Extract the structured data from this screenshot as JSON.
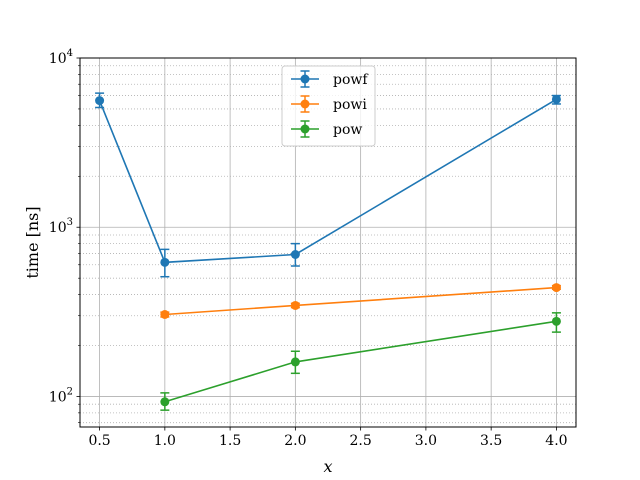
{
  "chart_data": {
    "type": "line",
    "title": "",
    "xlabel": "x",
    "ylabel": "time [ns]",
    "xlim": [
      0.35,
      4.15
    ],
    "ylim": [
      66,
      10000
    ],
    "yscale": "log",
    "grid": true,
    "legend_position": "top-center",
    "xticks": [
      0.5,
      1.0,
      1.5,
      2.0,
      2.5,
      3.0,
      3.5,
      4.0
    ],
    "xtick_labels": [
      "0.5",
      "1.0",
      "1.5",
      "2.0",
      "2.5",
      "3.0",
      "3.5",
      "4.0"
    ],
    "yticks": [
      {
        "value": 100,
        "base": "10",
        "exp": "2"
      },
      {
        "value": 1000,
        "base": "10",
        "exp": "3"
      },
      {
        "value": 10000,
        "base": "10",
        "exp": "4"
      }
    ],
    "series": [
      {
        "name": "powf",
        "color": "#1f77b4",
        "x": [
          0.5,
          1.0,
          2.0,
          4.0
        ],
        "y": [
          5600,
          620,
          690,
          5700
        ],
        "err_low": [
          5100,
          510,
          590,
          5350
        ],
        "err_high": [
          6200,
          740,
          800,
          6000
        ]
      },
      {
        "name": "powi",
        "color": "#ff7f0e",
        "x": [
          1.0,
          2.0,
          4.0
        ],
        "y": [
          305,
          345,
          440
        ],
        "err_low": [
          295,
          335,
          430
        ],
        "err_high": [
          315,
          355,
          452
        ]
      },
      {
        "name": "pow",
        "color": "#2ca02c",
        "x": [
          1.0,
          2.0,
          4.0
        ],
        "y": [
          93,
          160,
          278
        ],
        "err_low": [
          83,
          137,
          240
        ],
        "err_high": [
          105,
          185,
          312
        ]
      }
    ]
  }
}
